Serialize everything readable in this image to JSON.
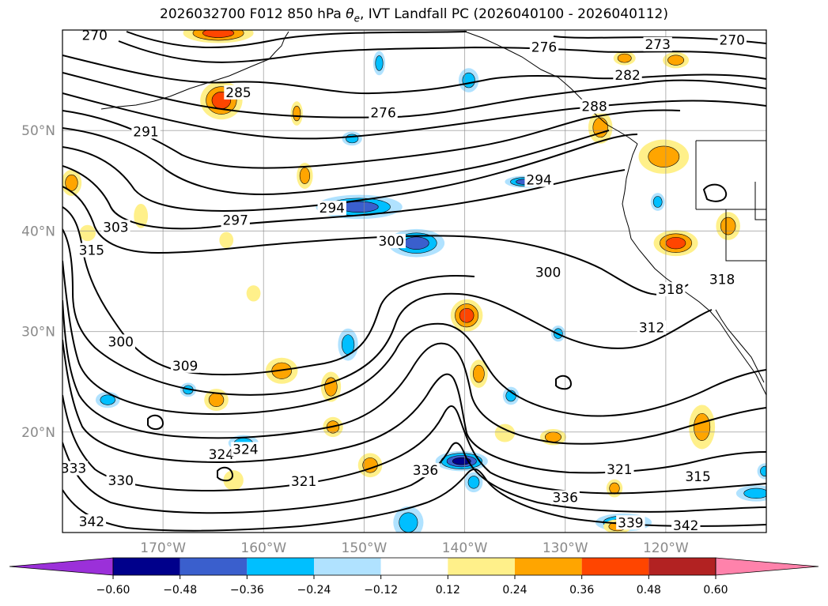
{
  "title": {
    "prefix": "2026032700 F012 850 hPa ",
    "theta_symbol": "θ",
    "theta_subscript": "e",
    "suffix": ", IVT Landfall PC (2026040100 - 2026040112)"
  },
  "chart_data": {
    "type": "contour-map",
    "title": "2026032700 F012 850 hPa θe, IVT Landfall PC (2026040100 - 2026040112)",
    "lon_range": [
      -180,
      -110
    ],
    "lat_range": [
      10,
      60
    ],
    "lon_ticks": [
      {
        "value": -170,
        "label": "170°W"
      },
      {
        "value": -160,
        "label": "160°W"
      },
      {
        "value": -150,
        "label": "150°W"
      },
      {
        "value": -140,
        "label": "140°W"
      },
      {
        "value": -130,
        "label": "130°W"
      },
      {
        "value": -120,
        "label": "120°W"
      }
    ],
    "lat_ticks": [
      {
        "value": 20,
        "label": "20°N"
      },
      {
        "value": 30,
        "label": "30°N"
      },
      {
        "value": 40,
        "label": "40°N"
      },
      {
        "value": 50,
        "label": "50°N"
      }
    ],
    "contour_variable": "850 hPa equivalent potential temperature (K)",
    "contour_labels": [
      {
        "text": "270",
        "lon": -176.8,
        "lat": 59.5
      },
      {
        "text": "270",
        "lon": -113.4,
        "lat": 59.0
      },
      {
        "text": "273",
        "lon": -120.8,
        "lat": 58.6
      },
      {
        "text": "276",
        "lon": -132.1,
        "lat": 58.3
      },
      {
        "text": "276",
        "lon": -148.1,
        "lat": 51.8
      },
      {
        "text": "282",
        "lon": -123.8,
        "lat": 55.5
      },
      {
        "text": "285",
        "lon": -162.5,
        "lat": 53.8
      },
      {
        "text": "288",
        "lon": -127.1,
        "lat": 52.4
      },
      {
        "text": "291",
        "lon": -171.7,
        "lat": 49.9
      },
      {
        "text": "294",
        "lon": -132.6,
        "lat": 45.1
      },
      {
        "text": "294",
        "lon": -153.2,
        "lat": 42.3
      },
      {
        "text": "297",
        "lon": -162.8,
        "lat": 41.1
      },
      {
        "text": "300",
        "lon": -147.3,
        "lat": 39.0
      },
      {
        "text": "300",
        "lon": -131.7,
        "lat": 35.9
      },
      {
        "text": "300",
        "lon": -174.2,
        "lat": 29.0
      },
      {
        "text": "303",
        "lon": -174.7,
        "lat": 40.4
      },
      {
        "text": "309",
        "lon": -167.8,
        "lat": 26.6
      },
      {
        "text": "312",
        "lon": -121.4,
        "lat": 30.4
      },
      {
        "text": "315",
        "lon": -177.1,
        "lat": 38.1
      },
      {
        "text": "315",
        "lon": -116.8,
        "lat": 15.6
      },
      {
        "text": "318",
        "lon": -119.5,
        "lat": 34.2
      },
      {
        "text": "318",
        "lon": -114.4,
        "lat": 35.2
      },
      {
        "text": "321",
        "lon": -156.0,
        "lat": 15.1
      },
      {
        "text": "321",
        "lon": -124.6,
        "lat": 16.3
      },
      {
        "text": "324",
        "lon": -164.2,
        "lat": 17.8
      },
      {
        "text": "324",
        "lon": -161.8,
        "lat": 18.3
      },
      {
        "text": "330",
        "lon": -174.2,
        "lat": 15.2
      },
      {
        "text": "333",
        "lon": -178.9,
        "lat": 16.4
      },
      {
        "text": "336",
        "lon": -143.9,
        "lat": 16.2
      },
      {
        "text": "336",
        "lon": -130.0,
        "lat": 13.5
      },
      {
        "text": "339",
        "lon": -123.5,
        "lat": 11.0
      },
      {
        "text": "342",
        "lon": -118.0,
        "lat": 10.7
      },
      {
        "text": "342",
        "lon": -177.1,
        "lat": 11.1
      }
    ],
    "fill_variable": "IVT landfall principal component (regression)",
    "colorbar": {
      "extend": "both",
      "levels": [
        -0.6,
        -0.48,
        -0.36,
        -0.24,
        -0.12,
        0.12,
        0.24,
        0.36,
        0.48,
        0.6
      ],
      "tick_labels": [
        "−0.60",
        "−0.48",
        "−0.36",
        "−0.24",
        "−0.12",
        "0.12",
        "0.24",
        "0.36",
        "0.48",
        "0.60"
      ],
      "colors": [
        "#9b30d9",
        "#00008b",
        "#3a5fcd",
        "#00bfff",
        "#b0e2ff",
        "#ffffff",
        "#fff08a",
        "#ffa500",
        "#ff4500",
        "#b22222",
        "#ff82ab"
      ]
    },
    "features": [
      {
        "kind": "negative",
        "level": -0.48,
        "lon": -140.3,
        "lat": 17.1,
        "rx_deg": 2.6,
        "ry_deg": 1.0
      },
      {
        "kind": "negative",
        "level": -0.36,
        "lon": -150.5,
        "lat": 42.4,
        "rx_deg": 4.3,
        "ry_deg": 1.2
      },
      {
        "kind": "negative",
        "level": -0.36,
        "lon": -144.8,
        "lat": 38.8,
        "rx_deg": 2.8,
        "ry_deg": 1.4
      },
      {
        "kind": "negative",
        "level": -0.36,
        "lon": -134.0,
        "lat": 44.9,
        "rx_deg": 2.0,
        "ry_deg": 0.6
      },
      {
        "kind": "negative",
        "level": -0.36,
        "lon": -124.2,
        "lat": 11.0,
        "rx_deg": 2.8,
        "ry_deg": 0.9
      },
      {
        "kind": "negative",
        "level": -0.24,
        "lon": -145.6,
        "lat": 11.0,
        "rx_deg": 1.5,
        "ry_deg": 1.6
      },
      {
        "kind": "negative",
        "level": -0.24,
        "lon": -139.6,
        "lat": 55.0,
        "rx_deg": 1.0,
        "ry_deg": 1.2
      },
      {
        "kind": "negative",
        "level": -0.24,
        "lon": -151.6,
        "lat": 28.7,
        "rx_deg": 1.0,
        "ry_deg": 1.6
      },
      {
        "kind": "negative",
        "level": -0.24,
        "lon": -111.0,
        "lat": 13.9,
        "rx_deg": 2.0,
        "ry_deg": 0.8
      },
      {
        "kind": "negative",
        "level": -0.24,
        "lon": -110.1,
        "lat": 16.1,
        "rx_deg": 0.8,
        "ry_deg": 0.8
      },
      {
        "kind": "negative",
        "level": -0.24,
        "lon": -139.1,
        "lat": 15.0,
        "rx_deg": 0.9,
        "ry_deg": 1.0
      },
      {
        "kind": "negative",
        "level": -0.24,
        "lon": -175.5,
        "lat": 23.2,
        "rx_deg": 1.2,
        "ry_deg": 0.8
      },
      {
        "kind": "negative",
        "level": -0.24,
        "lon": -162.0,
        "lat": 18.9,
        "rx_deg": 1.5,
        "ry_deg": 0.8
      },
      {
        "kind": "negative",
        "level": -0.24,
        "lon": -130.7,
        "lat": 29.8,
        "rx_deg": 0.7,
        "ry_deg": 0.8
      },
      {
        "kind": "negative",
        "level": -0.24,
        "lon": -135.4,
        "lat": 23.6,
        "rx_deg": 0.8,
        "ry_deg": 0.9
      },
      {
        "kind": "negative",
        "level": -0.24,
        "lon": -151.2,
        "lat": 49.2,
        "rx_deg": 1.0,
        "ry_deg": 0.7
      },
      {
        "kind": "negative",
        "level": -0.24,
        "lon": -148.5,
        "lat": 56.7,
        "rx_deg": 0.6,
        "ry_deg": 1.2
      },
      {
        "kind": "negative",
        "level": -0.24,
        "lon": -120.8,
        "lat": 42.9,
        "rx_deg": 0.7,
        "ry_deg": 0.9
      },
      {
        "kind": "negative",
        "level": -0.24,
        "lon": -167.5,
        "lat": 24.2,
        "rx_deg": 0.8,
        "ry_deg": 0.7
      },
      {
        "kind": "positive",
        "level": 0.36,
        "lon": -139.8,
        "lat": 31.6,
        "rx_deg": 1.6,
        "ry_deg": 1.6
      },
      {
        "kind": "positive",
        "level": 0.36,
        "lon": -164.2,
        "lat": 53.0,
        "rx_deg": 2.1,
        "ry_deg": 1.9
      },
      {
        "kind": "positive",
        "level": 0.36,
        "lon": -119.0,
        "lat": 38.8,
        "rx_deg": 2.2,
        "ry_deg": 1.3
      },
      {
        "kind": "positive",
        "level": 0.36,
        "lon": -164.5,
        "lat": 59.7,
        "rx_deg": 3.5,
        "ry_deg": 1.0
      },
      {
        "kind": "positive",
        "level": 0.24,
        "lon": -158.2,
        "lat": 26.1,
        "rx_deg": 1.6,
        "ry_deg": 1.3
      },
      {
        "kind": "positive",
        "level": 0.24,
        "lon": -120.2,
        "lat": 47.4,
        "rx_deg": 2.5,
        "ry_deg": 1.7
      },
      {
        "kind": "positive",
        "level": 0.24,
        "lon": -126.5,
        "lat": 50.3,
        "rx_deg": 1.2,
        "ry_deg": 1.6
      },
      {
        "kind": "positive",
        "level": 0.24,
        "lon": -116.4,
        "lat": 20.5,
        "rx_deg": 1.3,
        "ry_deg": 2.2
      },
      {
        "kind": "positive",
        "level": 0.24,
        "lon": -113.8,
        "lat": 40.5,
        "rx_deg": 1.2,
        "ry_deg": 1.4
      },
      {
        "kind": "positive",
        "level": 0.24,
        "lon": -124.8,
        "lat": 10.6,
        "rx_deg": 1.4,
        "ry_deg": 0.7
      },
      {
        "kind": "positive",
        "level": 0.24,
        "lon": -164.7,
        "lat": 23.2,
        "rx_deg": 1.2,
        "ry_deg": 1.1
      },
      {
        "kind": "positive",
        "level": 0.24,
        "lon": -138.6,
        "lat": 25.8,
        "rx_deg": 0.9,
        "ry_deg": 1.4
      },
      {
        "kind": "positive",
        "level": 0.24,
        "lon": -153.3,
        "lat": 24.5,
        "rx_deg": 1.0,
        "ry_deg": 1.5
      },
      {
        "kind": "positive",
        "level": 0.24,
        "lon": -179.1,
        "lat": 44.8,
        "rx_deg": 1.0,
        "ry_deg": 1.3
      },
      {
        "kind": "positive",
        "level": 0.24,
        "lon": -153.1,
        "lat": 20.5,
        "rx_deg": 1.0,
        "ry_deg": 1.0
      },
      {
        "kind": "positive",
        "level": 0.24,
        "lon": -155.9,
        "lat": 45.5,
        "rx_deg": 0.8,
        "ry_deg": 1.3
      },
      {
        "kind": "positive",
        "level": 0.24,
        "lon": -149.4,
        "lat": 16.7,
        "rx_deg": 1.2,
        "ry_deg": 1.2
      },
      {
        "kind": "positive",
        "level": 0.24,
        "lon": -156.7,
        "lat": 51.7,
        "rx_deg": 0.6,
        "ry_deg": 1.2
      },
      {
        "kind": "positive",
        "level": 0.24,
        "lon": -125.1,
        "lat": 14.4,
        "rx_deg": 0.8,
        "ry_deg": 0.9
      },
      {
        "kind": "positive",
        "level": 0.24,
        "lon": -119.0,
        "lat": 57.0,
        "rx_deg": 1.3,
        "ry_deg": 0.8
      },
      {
        "kind": "positive",
        "level": 0.24,
        "lon": -124.1,
        "lat": 57.2,
        "rx_deg": 1.1,
        "ry_deg": 0.7
      },
      {
        "kind": "positive",
        "level": 0.24,
        "lon": -131.2,
        "lat": 19.5,
        "rx_deg": 1.3,
        "ry_deg": 0.8
      },
      {
        "kind": "positive",
        "level": 0.12,
        "lon": -163.0,
        "lat": 15.2,
        "rx_deg": 1.0,
        "ry_deg": 1.0
      },
      {
        "kind": "positive",
        "level": 0.12,
        "lon": -161.0,
        "lat": 33.8,
        "rx_deg": 0.7,
        "ry_deg": 0.8
      },
      {
        "kind": "positive",
        "level": 0.12,
        "lon": -163.7,
        "lat": 39.1,
        "rx_deg": 0.7,
        "ry_deg": 0.8
      },
      {
        "kind": "positive",
        "level": 0.12,
        "lon": -177.5,
        "lat": 39.8,
        "rx_deg": 0.8,
        "ry_deg": 0.8
      },
      {
        "kind": "positive",
        "level": 0.12,
        "lon": -172.2,
        "lat": 41.5,
        "rx_deg": 0.7,
        "ry_deg": 1.2
      },
      {
        "kind": "positive",
        "level": 0.12,
        "lon": -136.0,
        "lat": 19.9,
        "rx_deg": 1.0,
        "ry_deg": 0.9
      }
    ]
  }
}
